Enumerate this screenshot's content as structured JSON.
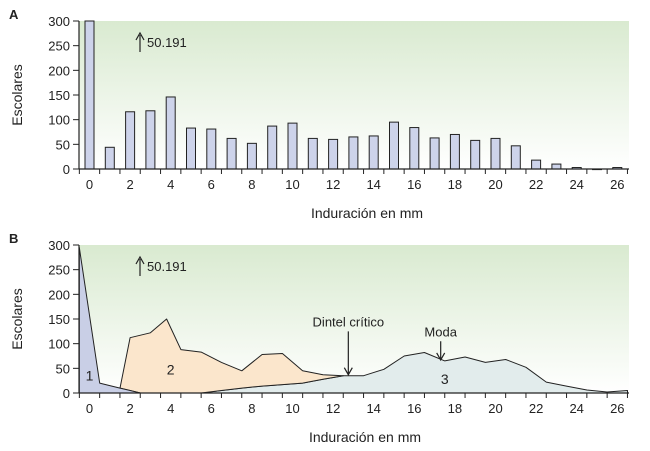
{
  "colors": {
    "plot_bg_top": "#ffffff",
    "plot_bg_bottom": "#d9ead0",
    "bar_fill": "#cdd3ea",
    "bar_stroke": "#222222",
    "region1_fill": "#c9cfe6",
    "region2_fill": "#fbe6cc",
    "region3_fill": "#e2ecec",
    "axis": "#222222"
  },
  "chart_data": [
    {
      "type": "bar",
      "panel_label": "A",
      "ylabel": "Escolares",
      "xlabel": "Induración en mm",
      "ylim": [
        0,
        300
      ],
      "yticks": [
        0,
        50,
        100,
        150,
        200,
        250,
        300
      ],
      "xticks": [
        0,
        2,
        4,
        6,
        8,
        10,
        12,
        14,
        16,
        18,
        20,
        22,
        24,
        26
      ],
      "x": [
        0,
        1,
        2,
        3,
        4,
        5,
        6,
        7,
        8,
        9,
        10,
        11,
        12,
        13,
        14,
        15,
        16,
        17,
        18,
        19,
        20,
        21,
        22,
        23,
        24,
        25,
        26
      ],
      "values": [
        300,
        44,
        116,
        118,
        146,
        83,
        81,
        62,
        52,
        87,
        93,
        62,
        60,
        65,
        67,
        95,
        84,
        63,
        70,
        58,
        62,
        47,
        18,
        10,
        3,
        0,
        3
      ],
      "annotation": {
        "text": "50.191",
        "x": 2.5,
        "y": 275
      },
      "grid": false
    },
    {
      "type": "area",
      "panel_label": "B",
      "ylabel": "Escolares",
      "xlabel": "Induración en mm",
      "ylim": [
        0,
        300
      ],
      "yticks": [
        0,
        50,
        100,
        150,
        200,
        250,
        300
      ],
      "xticks": [
        0,
        2,
        4,
        6,
        8,
        10,
        12,
        14,
        16,
        18,
        20,
        22,
        24,
        26
      ],
      "series": [
        {
          "region": "1",
          "x": [
            -0.5,
            0.5,
            1,
            1.5,
            2.5,
            2.5
          ],
          "y": [
            295,
            20,
            15,
            10,
            0,
            0
          ]
        },
        {
          "region": "2",
          "x": [
            1.5,
            2,
            3,
            3.8,
            4.5,
            5.5,
            6.5,
            7.5,
            8.5,
            9.5,
            10.5,
            11.5,
            12.5
          ],
          "y": [
            10,
            112,
            122,
            150,
            88,
            83,
            62,
            45,
            78,
            80,
            45,
            37,
            35
          ],
          "lower_x": [
            12.5,
            11.5,
            10.5,
            9.5,
            8.5,
            7.5,
            6.5,
            5.5,
            4.5,
            3.5,
            2.5,
            1.5
          ],
          "lower_y": [
            35,
            28,
            20,
            17,
            14,
            10,
            5,
            0,
            0,
            0,
            0,
            10
          ]
        },
        {
          "region": "3",
          "x": [
            5.5,
            6.5,
            7.5,
            8.5,
            9.5,
            10.5,
            11.5,
            12.5,
            13.5,
            14.5,
            15.5,
            16.5,
            17.5,
            18.5,
            19.5,
            20.5,
            21.5,
            22.5,
            23.5,
            24.5,
            25.5,
            26.5
          ],
          "y": [
            0,
            5,
            10,
            14,
            17,
            20,
            28,
            35,
            35,
            48,
            75,
            82,
            65,
            73,
            62,
            68,
            52,
            22,
            14,
            6,
            2,
            5
          ]
        }
      ],
      "region_labels": [
        {
          "text": "1",
          "x": 0,
          "y": 35
        },
        {
          "text": "2",
          "x": 4,
          "y": 48
        },
        {
          "text": "3",
          "x": 17.5,
          "y": 28
        }
      ],
      "annotations": [
        {
          "text": "50.191",
          "x": 2.5,
          "y": 275
        },
        {
          "text": "Dintel crítico",
          "x": 12.75,
          "y": 35,
          "label_y": 135
        },
        {
          "text": "Moda",
          "x": 17.3,
          "y": 65,
          "label_y": 115
        }
      ],
      "grid": false
    }
  ]
}
